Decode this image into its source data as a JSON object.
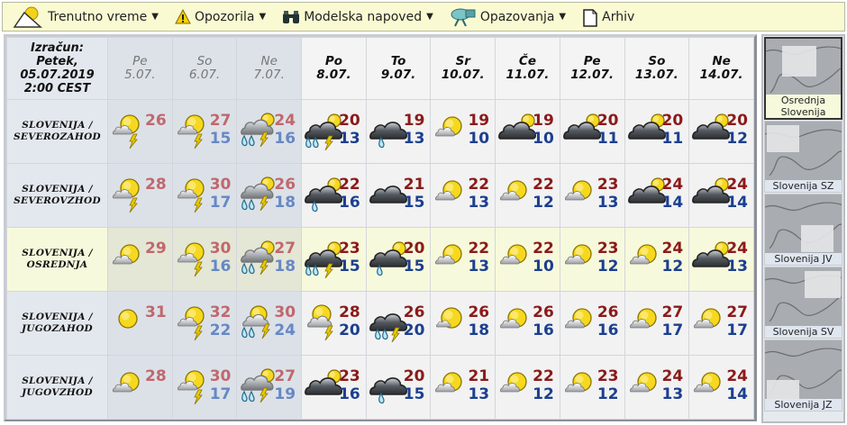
{
  "toolbar": {
    "items": [
      {
        "label": "Trenutno vreme",
        "icon": "weather-icon",
        "dropdown": true
      },
      {
        "label": "Opozorila",
        "icon": "warning-icon",
        "dropdown": true
      },
      {
        "label": "Modelska napoved",
        "icon": "binoculars-icon",
        "dropdown": true
      },
      {
        "label": "Opazovanja",
        "icon": "observation-icon",
        "dropdown": true
      },
      {
        "label": "Arhiv",
        "icon": "document-icon",
        "dropdown": false
      }
    ]
  },
  "table": {
    "corner": [
      "Izračun:",
      "Petek,",
      "05.07.2019",
      "2:00 CEST"
    ],
    "days": [
      {
        "day": "Pe",
        "date": "5.07.",
        "past": true
      },
      {
        "day": "So",
        "date": "6.07.",
        "past": true
      },
      {
        "day": "Ne",
        "date": "7.07.",
        "past": true
      },
      {
        "day": "Po",
        "date": "8.07."
      },
      {
        "day": "To",
        "date": "9.07."
      },
      {
        "day": "Sr",
        "date": "10.07."
      },
      {
        "day": "Če",
        "date": "11.07."
      },
      {
        "day": "Pe",
        "date": "12.07."
      },
      {
        "day": "So",
        "date": "13.07."
      },
      {
        "day": "Ne",
        "date": "14.07."
      }
    ],
    "rows": [
      {
        "region": [
          "SLOVENIJA /",
          "SEVEROZAHOD"
        ],
        "selected": false,
        "cells": [
          {
            "icon": "mostly-clear-storm",
            "max": "26",
            "min": ""
          },
          {
            "icon": "mostly-clear-storm",
            "max": "27",
            "min": "15"
          },
          {
            "icon": "cloudy-sun-rain-storm",
            "max": "24",
            "min": "16"
          },
          {
            "icon": "overcast-sun-rain-storm",
            "max": "20",
            "min": "13"
          },
          {
            "icon": "overcast-rain",
            "max": "19",
            "min": "13"
          },
          {
            "icon": "mostly-clear",
            "max": "19",
            "min": "10"
          },
          {
            "icon": "overcast-sun",
            "max": "19",
            "min": "10"
          },
          {
            "icon": "overcast-sun",
            "max": "20",
            "min": "11"
          },
          {
            "icon": "overcast-sun",
            "max": "20",
            "min": "11"
          },
          {
            "icon": "overcast-sun",
            "max": "20",
            "min": "12"
          }
        ]
      },
      {
        "region": [
          "SLOVENIJA /",
          "SEVEROVZHOD"
        ],
        "selected": false,
        "cells": [
          {
            "icon": "mostly-clear-storm",
            "max": "28",
            "min": ""
          },
          {
            "icon": "mostly-clear-storm",
            "max": "30",
            "min": "17"
          },
          {
            "icon": "cloudy-sun-rain-storm",
            "max": "26",
            "min": "18"
          },
          {
            "icon": "overcast-sun-rain",
            "max": "22",
            "min": "16"
          },
          {
            "icon": "overcast",
            "max": "21",
            "min": "15"
          },
          {
            "icon": "mostly-clear",
            "max": "22",
            "min": "13"
          },
          {
            "icon": "mostly-clear",
            "max": "22",
            "min": "12"
          },
          {
            "icon": "mostly-clear",
            "max": "23",
            "min": "13"
          },
          {
            "icon": "overcast-sun",
            "max": "24",
            "min": "14"
          },
          {
            "icon": "overcast-sun",
            "max": "24",
            "min": "14"
          }
        ]
      },
      {
        "region": [
          "SLOVENIJA /",
          "OSREDNJA"
        ],
        "selected": true,
        "cells": [
          {
            "icon": "mostly-clear",
            "max": "29",
            "min": ""
          },
          {
            "icon": "mostly-clear-storm",
            "max": "30",
            "min": "16"
          },
          {
            "icon": "cloudy-sun-rain-storm",
            "max": "27",
            "min": "18"
          },
          {
            "icon": "overcast-sun-rain-storm",
            "max": "23",
            "min": "15"
          },
          {
            "icon": "overcast-sun-rain",
            "max": "20",
            "min": "15"
          },
          {
            "icon": "mostly-clear",
            "max": "22",
            "min": "13"
          },
          {
            "icon": "mostly-clear",
            "max": "22",
            "min": "10"
          },
          {
            "icon": "mostly-clear",
            "max": "23",
            "min": "12"
          },
          {
            "icon": "mostly-clear",
            "max": "24",
            "min": "12"
          },
          {
            "icon": "overcast-sun",
            "max": "24",
            "min": "13"
          }
        ]
      },
      {
        "region": [
          "SLOVENIJA /",
          "JUGOZAHOD"
        ],
        "selected": false,
        "cells": [
          {
            "icon": "clear",
            "max": "31",
            "min": ""
          },
          {
            "icon": "mostly-clear-storm",
            "max": "32",
            "min": "22"
          },
          {
            "icon": "partly-cloudy-rain-storm",
            "max": "30",
            "min": "24"
          },
          {
            "icon": "partly-cloudy-storm",
            "max": "28",
            "min": "20"
          },
          {
            "icon": "overcast-rain-storm",
            "max": "26",
            "min": "20"
          },
          {
            "icon": "mostly-sunny",
            "max": "26",
            "min": "18"
          },
          {
            "icon": "mostly-clear",
            "max": "26",
            "min": "16"
          },
          {
            "icon": "mostly-clear",
            "max": "26",
            "min": "16"
          },
          {
            "icon": "mostly-clear",
            "max": "27",
            "min": "17"
          },
          {
            "icon": "mostly-clear",
            "max": "27",
            "min": "17"
          }
        ]
      },
      {
        "region": [
          "SLOVENIJA /",
          "JUGOVZHOD"
        ],
        "selected": false,
        "cells": [
          {
            "icon": "mostly-clear",
            "max": "28",
            "min": ""
          },
          {
            "icon": "mostly-clear-storm",
            "max": "30",
            "min": "17"
          },
          {
            "icon": "cloudy-sun-rain-storm",
            "max": "27",
            "min": "19"
          },
          {
            "icon": "overcast-sun",
            "max": "23",
            "min": "16"
          },
          {
            "icon": "overcast-rain",
            "max": "20",
            "min": "15"
          },
          {
            "icon": "mostly-clear",
            "max": "21",
            "min": "13"
          },
          {
            "icon": "mostly-clear",
            "max": "22",
            "min": "12"
          },
          {
            "icon": "mostly-clear",
            "max": "23",
            "min": "12"
          },
          {
            "icon": "mostly-clear",
            "max": "24",
            "min": "13"
          },
          {
            "icon": "mostly-clear",
            "max": "24",
            "min": "14"
          }
        ]
      }
    ]
  },
  "sidebar": {
    "maps": [
      {
        "label": "Osrednja Slovenija",
        "selected": true,
        "focus": "center"
      },
      {
        "label": "Slovenija SZ",
        "focus": "northwest"
      },
      {
        "label": "Slovenija JV",
        "focus": "southeast"
      },
      {
        "label": "Slovenija SV",
        "focus": "northeast"
      },
      {
        "label": "Slovenija JZ",
        "focus": "southwest"
      }
    ]
  },
  "colors": {
    "toolbar_bg": "#fafad2",
    "selected_row": "#f7f9dc",
    "max_temp": "#8b1a1a",
    "min_temp": "#1c3f8f",
    "past_max_temp": "#c0686c",
    "past_min_temp": "#6688c4"
  }
}
